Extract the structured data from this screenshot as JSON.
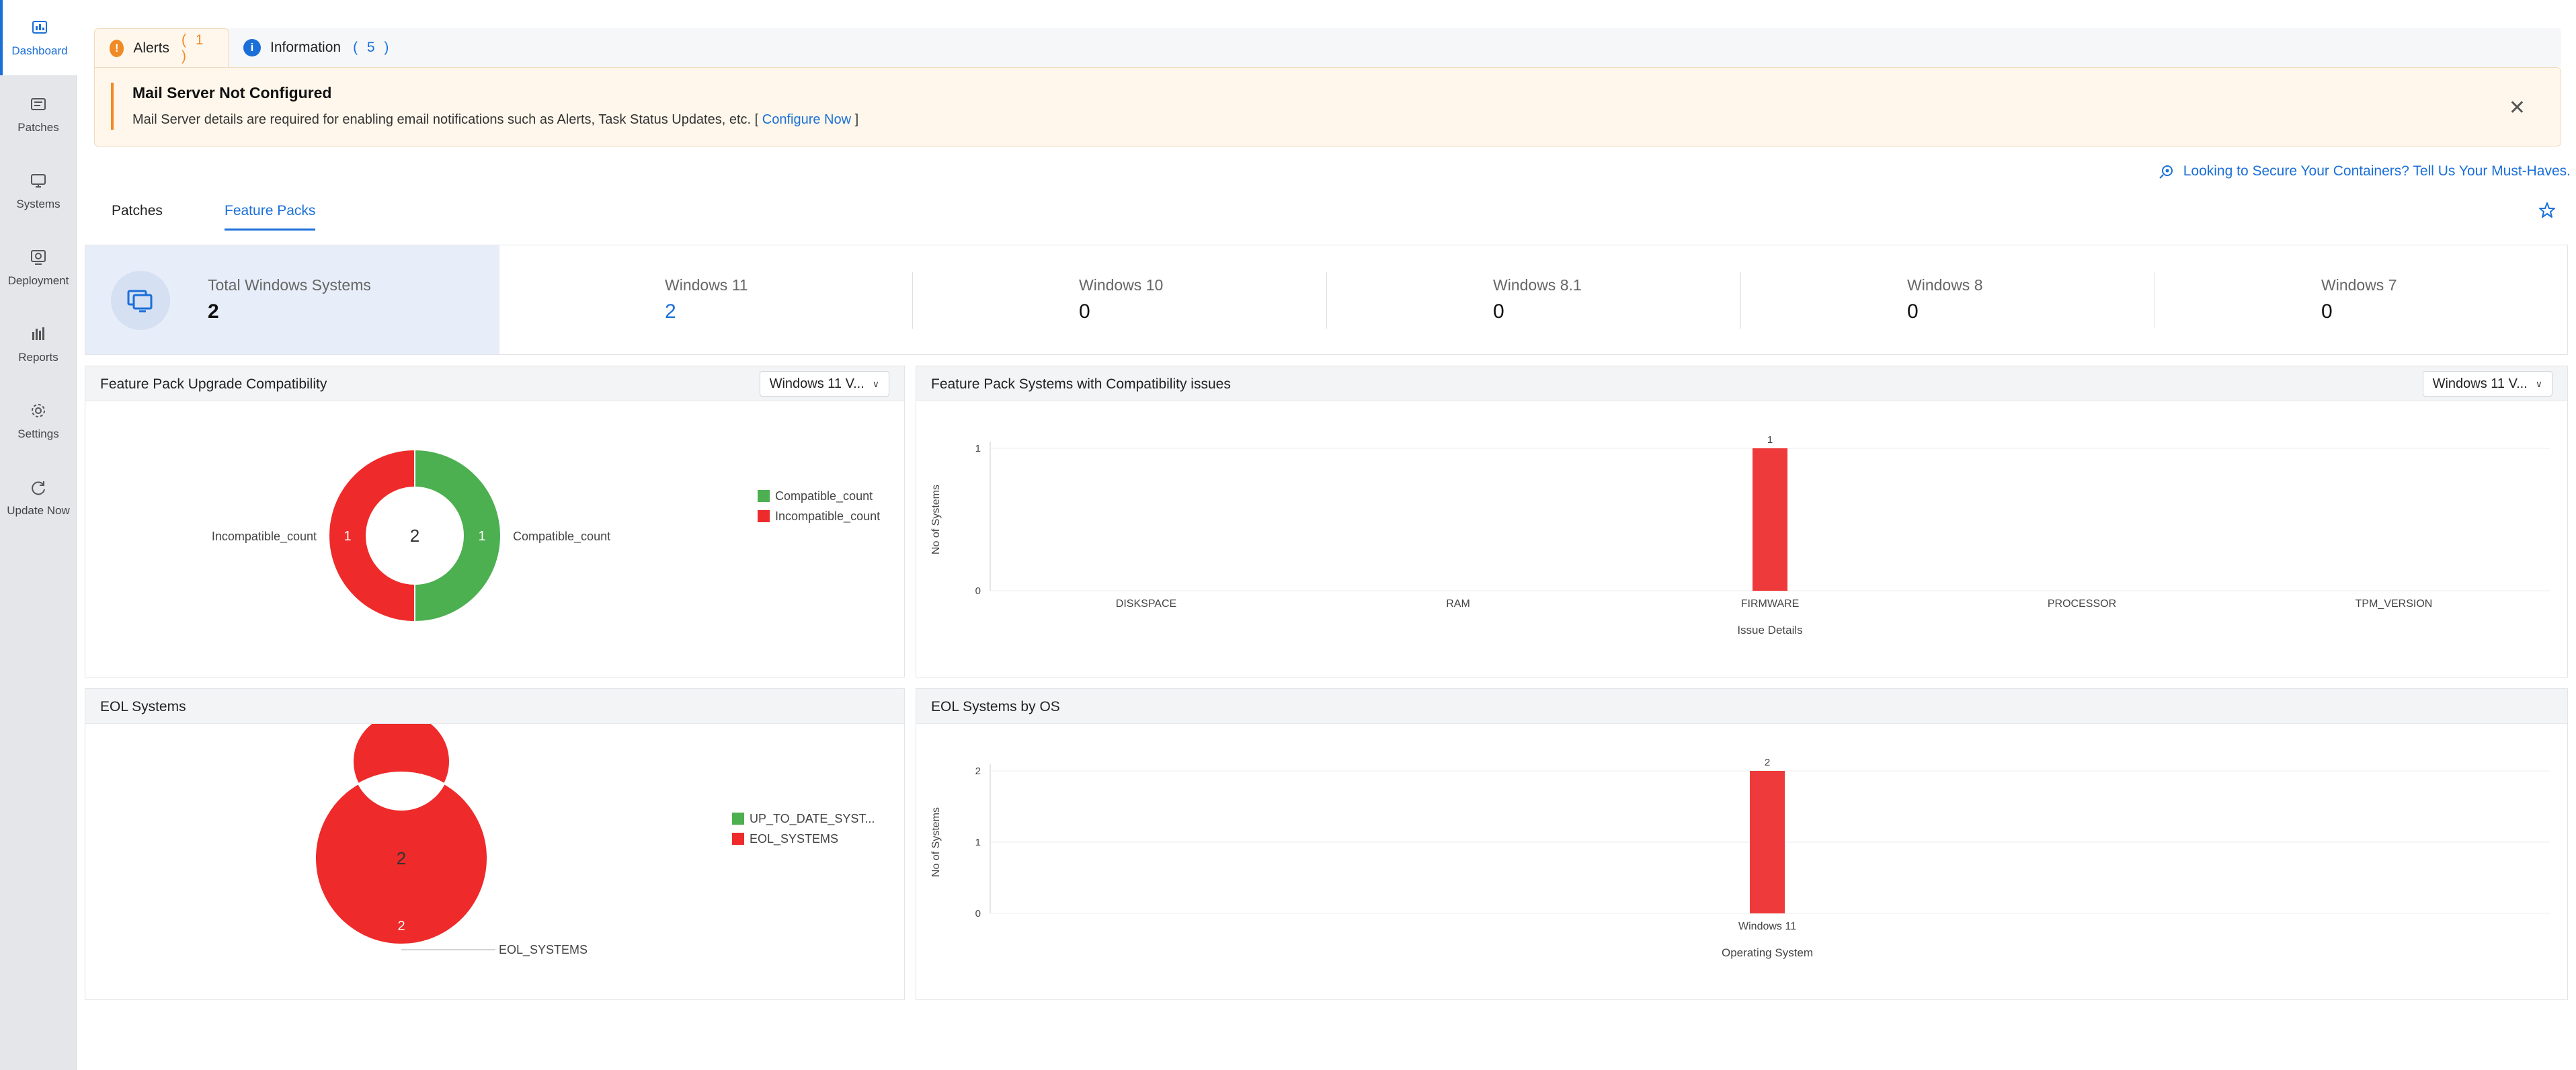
{
  "sidebar": {
    "items": [
      {
        "label": "Dashboard",
        "icon": "dashboard-icon",
        "active": true
      },
      {
        "label": "Patches",
        "icon": "patches-icon"
      },
      {
        "label": "Systems",
        "icon": "systems-icon"
      },
      {
        "label": "Deployment",
        "icon": "deployment-icon"
      },
      {
        "label": "Reports",
        "icon": "reports-icon"
      },
      {
        "label": "Settings",
        "icon": "settings-icon"
      },
      {
        "label": "Update Now",
        "icon": "update-now-icon"
      }
    ]
  },
  "alerts": {
    "tabs": [
      {
        "label": "Alerts",
        "count": "( 1 )",
        "icon_color": "#f08a24"
      },
      {
        "label": "Information",
        "count": "( 5 )",
        "icon_color": "#1a6fd8"
      }
    ],
    "title": "Mail Server Not Configured",
    "message": "Mail Server details are required for enabling email notifications such as Alerts, Task Status Updates, etc. [",
    "link": "Configure Now",
    "message_end": "]"
  },
  "promo": {
    "text": "Looking to Secure Your Containers? Tell Us Your Must-Haves."
  },
  "subtabs": [
    {
      "label": "Patches",
      "active": false
    },
    {
      "label": "Feature Packs",
      "active": true
    }
  ],
  "stats": {
    "total": {
      "label": "Total Windows Systems",
      "value": "2"
    },
    "items": [
      {
        "label": "Windows 11",
        "value": "2"
      },
      {
        "label": "Windows 10",
        "value": "0"
      },
      {
        "label": "Windows 8.1",
        "value": "0"
      },
      {
        "label": "Windows 8",
        "value": "0"
      },
      {
        "label": "Windows 7",
        "value": "0"
      }
    ]
  },
  "colors": {
    "green": "#4caf50",
    "red": "#ee2a2a",
    "accent": "#1a6fd8"
  },
  "panels": {
    "compat": {
      "title": "Feature Pack Upgrade Compatibility",
      "select": "Windows 11 V..."
    },
    "issues": {
      "title": "Feature Pack Systems with Compatibility issues",
      "select": "Windows 11 V..."
    },
    "eol": {
      "title": "EOL Systems"
    },
    "eol_os": {
      "title": "EOL Systems by OS"
    }
  },
  "chart_data": [
    {
      "type": "pie",
      "title": "Feature Pack Upgrade Compatibility",
      "donut": true,
      "center_label": "2",
      "labels": [
        "Compatible_count",
        "Incompatible_count"
      ],
      "values": [
        1,
        1
      ],
      "colors": [
        "#4caf50",
        "#ee2a2a"
      ],
      "legend": [
        "Compatible_count",
        "Incompatible_count"
      ],
      "legend_position": "top-right"
    },
    {
      "type": "bar",
      "title": "Feature Pack Systems with Compatibility issues",
      "categories": [
        "DISKSPACE",
        "RAM",
        "FIRMWARE",
        "PROCESSOR",
        "TPM_VERSION"
      ],
      "values": [
        0,
        0,
        1,
        0,
        0
      ],
      "xlabel": "Issue Details",
      "ylabel": "No of Systems",
      "yticks": [
        "0",
        "1"
      ],
      "ylim": [
        0,
        1
      ],
      "color": "#ee3a3a"
    },
    {
      "type": "pie",
      "title": "EOL Systems",
      "donut": true,
      "center_label": "2",
      "labels": [
        "EOL_SYSTEMS"
      ],
      "values": [
        2
      ],
      "colors": [
        "#ee2a2a"
      ],
      "legend": [
        "UP_TO_DATE_SYST...",
        "EOL_SYSTEMS"
      ],
      "legend_colors": [
        "#4caf50",
        "#ee2a2a"
      ],
      "legend_position": "top-right"
    },
    {
      "type": "bar",
      "title": "EOL Systems by OS",
      "categories": [
        "Windows 11"
      ],
      "values": [
        2
      ],
      "xlabel": "Operating System",
      "ylabel": "No of Systems",
      "yticks": [
        "0",
        "1",
        "2"
      ],
      "ylim": [
        0,
        2
      ],
      "color": "#ee3a3a"
    }
  ]
}
